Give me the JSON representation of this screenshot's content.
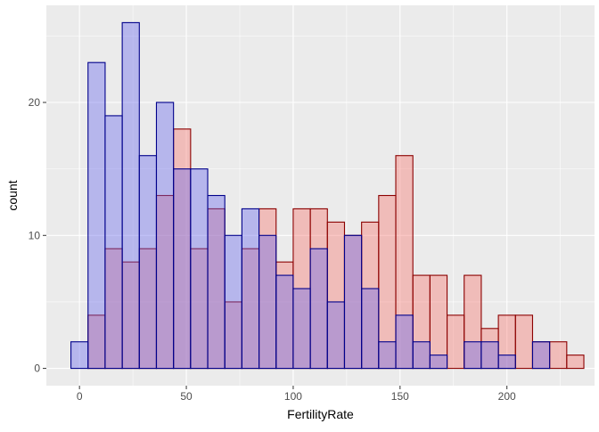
{
  "chart_data": {
    "type": "bar",
    "title": "",
    "xlabel": "FertilityRate",
    "ylabel": "count",
    "xlim": [
      -15.5,
      241
    ],
    "ylim": [
      -1.3,
      27.3
    ],
    "x_ticks": [
      0,
      50,
      100,
      150,
      200
    ],
    "x_tick_labels": [
      "0",
      "50",
      "100",
      "150",
      "200"
    ],
    "y_ticks": [
      0,
      10,
      20
    ],
    "y_tick_labels": [
      "0",
      "10",
      "20"
    ],
    "grid": true,
    "legend": "none",
    "bins": {
      "start": [
        -4,
        4,
        12,
        20,
        28,
        36,
        44,
        52,
        60,
        68,
        76,
        84,
        92,
        100,
        108,
        116,
        124,
        132,
        140,
        148,
        156,
        164,
        172,
        180,
        188,
        196,
        204,
        212,
        220,
        228
      ],
      "width": 8
    },
    "series": [
      {
        "values": [
          0,
          4,
          9,
          8,
          9,
          13,
          18,
          9,
          12,
          5,
          9,
          12,
          8,
          12,
          12,
          11,
          10,
          11,
          13,
          16,
          7,
          7,
          4,
          7,
          3,
          4,
          4,
          2,
          2,
          1
        ],
        "fill": "#F8766D",
        "stroke": "#8B0000"
      },
      {
        "values": [
          2,
          23,
          19,
          26,
          16,
          20,
          15,
          15,
          13,
          10,
          12,
          10,
          7,
          6,
          9,
          5,
          10,
          6,
          2,
          4,
          2,
          1,
          0,
          2,
          2,
          1,
          0,
          2,
          0,
          0
        ],
        "fill": "#6666EE",
        "stroke": "#00008B"
      }
    ],
    "colors": {
      "panel_background": "#EBEBEB",
      "grid_major": "#FFFFFF",
      "tick_text": "#4D4D4D",
      "axis_title": "#000000"
    }
  }
}
